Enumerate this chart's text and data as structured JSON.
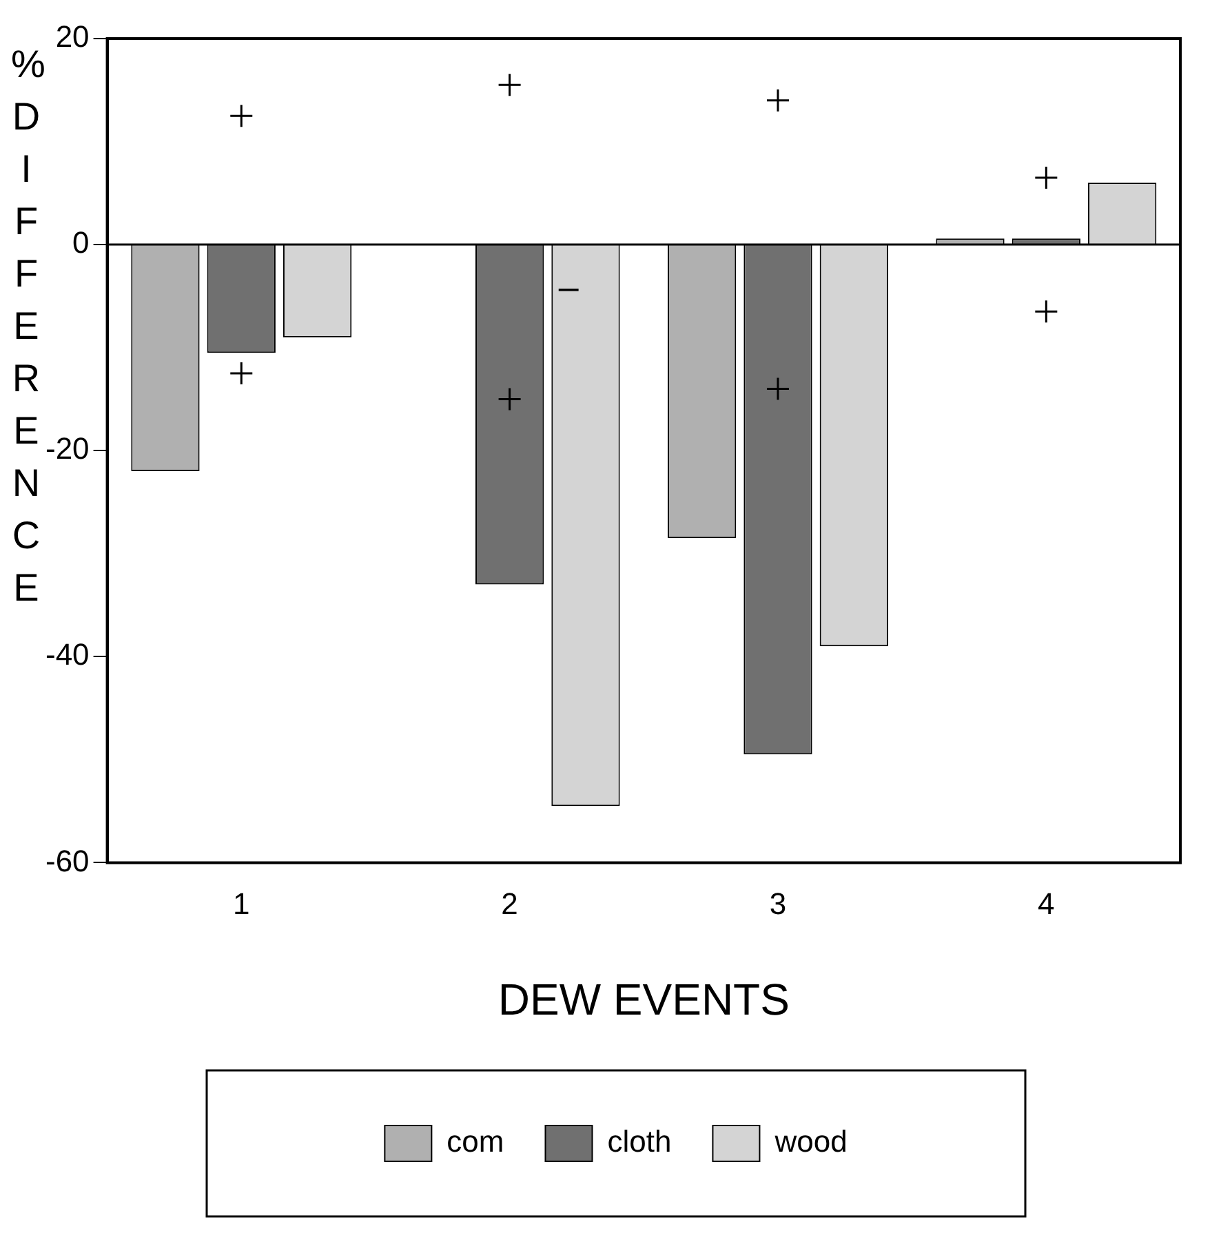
{
  "chart_data": {
    "type": "bar",
    "xlabel": "DEW EVENTS",
    "ylabel": "% DIFFERENCE",
    "categories": [
      "1",
      "2",
      "3",
      "4"
    ],
    "series": [
      {
        "name": "com",
        "color": "#b0b0b0",
        "values": [
          -22,
          null,
          -28.5,
          0.6
        ]
      },
      {
        "name": "cloth",
        "color": "#707070",
        "values": [
          -10.5,
          -33,
          -49.5,
          0.6
        ]
      },
      {
        "name": "wood",
        "color": "#d4d4d4",
        "values": [
          -9,
          -54.5,
          -39,
          6
        ]
      },
      {
        "type": "scatter",
        "color": "#000000",
        "x": [
          "1",
          "1",
          "2",
          "2",
          "3",
          "3",
          "4",
          "4"
        ],
        "values": [
          12.5,
          -12.5,
          15.5,
          -15,
          14,
          -14,
          6.5,
          -6.5
        ]
      }
    ],
    "annotations": [
      "–"
    ],
    "ylim": [
      -60,
      20
    ],
    "yticks": [
      -60,
      -40,
      -20,
      0,
      20
    ],
    "ref_lines": [
      {
        "axis": "y",
        "value": 0,
        "color": "#000000"
      }
    ],
    "marker": "cross",
    "grid": false,
    "legend": "bottom"
  }
}
